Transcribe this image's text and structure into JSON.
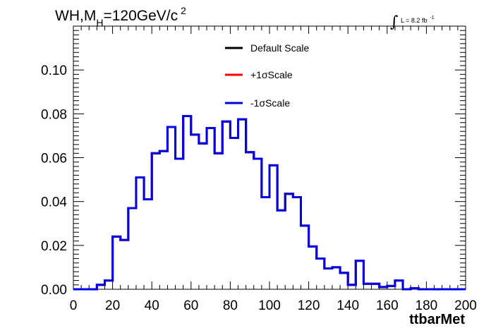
{
  "chart_data": {
    "type": "line",
    "title": {
      "main": "WH,M",
      "subscript": "H",
      "value": "=120GeV/c",
      "superscript": "2"
    },
    "luminosity": {
      "integral_symbol": "∫",
      "text": "L = 8.2 fb",
      "superscript": "-1"
    },
    "xlabel": "ttbarMet",
    "ylabel": "",
    "xlim": [
      0,
      200
    ],
    "ylim": [
      0,
      0.12
    ],
    "x_ticks": [
      "0",
      "20",
      "40",
      "60",
      "80",
      "100",
      "120",
      "140",
      "160",
      "180",
      "200"
    ],
    "y_ticks": [
      "0.00",
      "0.02",
      "0.04",
      "0.06",
      "0.08",
      "0.10"
    ],
    "grid": false,
    "legend_position": "top-center",
    "bin_edges": [
      0,
      4,
      8,
      12,
      16,
      20,
      24,
      28,
      32,
      36,
      40,
      44,
      48,
      52,
      56,
      60,
      64,
      68,
      72,
      76,
      80,
      84,
      88,
      92,
      96,
      100,
      104,
      108,
      112,
      116,
      120,
      124,
      128,
      132,
      136,
      140,
      144,
      148,
      152,
      156,
      160,
      164,
      168,
      172,
      176,
      180,
      184,
      188,
      192,
      196,
      200
    ],
    "series": [
      {
        "name": "Default Scale",
        "color": "#000000",
        "values": [
          0,
          0,
          0,
          0.002,
          0.004,
          0.024,
          0.0225,
          0.037,
          0.051,
          0.041,
          0.062,
          0.063,
          0.074,
          0.0595,
          0.079,
          0.0705,
          0.0665,
          0.0735,
          0.062,
          0.0765,
          0.069,
          0.0775,
          0.0625,
          0.0595,
          0.042,
          0.0565,
          0.036,
          0.0435,
          0.042,
          0.029,
          0.0195,
          0.014,
          0.0095,
          0.01,
          0.0075,
          0.002,
          0.013,
          0.0025,
          0.0025,
          0.001,
          0.0015,
          0.004,
          0,
          0.0005,
          0,
          0,
          0,
          0,
          0,
          0
        ]
      },
      {
        "name": "+1σScale",
        "color": "#ff0000",
        "values": [
          0,
          0,
          0,
          0.002,
          0.004,
          0.024,
          0.0225,
          0.037,
          0.051,
          0.041,
          0.062,
          0.063,
          0.074,
          0.0595,
          0.079,
          0.0705,
          0.0665,
          0.0735,
          0.062,
          0.0765,
          0.069,
          0.0775,
          0.0625,
          0.0595,
          0.042,
          0.0565,
          0.036,
          0.0435,
          0.042,
          0.029,
          0.0195,
          0.014,
          0.0095,
          0.01,
          0.0075,
          0.002,
          0.013,
          0.0025,
          0.0025,
          0.001,
          0.0015,
          0.004,
          0,
          0.0005,
          0,
          0,
          0,
          0,
          0,
          0
        ]
      },
      {
        "name": "-1σScale",
        "color": "#0000e6",
        "values": [
          0,
          0,
          0,
          0.002,
          0.004,
          0.024,
          0.0225,
          0.037,
          0.051,
          0.041,
          0.062,
          0.063,
          0.074,
          0.0595,
          0.079,
          0.0705,
          0.0665,
          0.0735,
          0.062,
          0.0765,
          0.069,
          0.0775,
          0.0625,
          0.0595,
          0.042,
          0.0565,
          0.036,
          0.0435,
          0.042,
          0.029,
          0.0195,
          0.014,
          0.0095,
          0.01,
          0.0075,
          0.002,
          0.013,
          0.0025,
          0.0025,
          0.001,
          0.0015,
          0.004,
          0,
          0.0005,
          0,
          0,
          0,
          0,
          0,
          0
        ]
      }
    ]
  }
}
